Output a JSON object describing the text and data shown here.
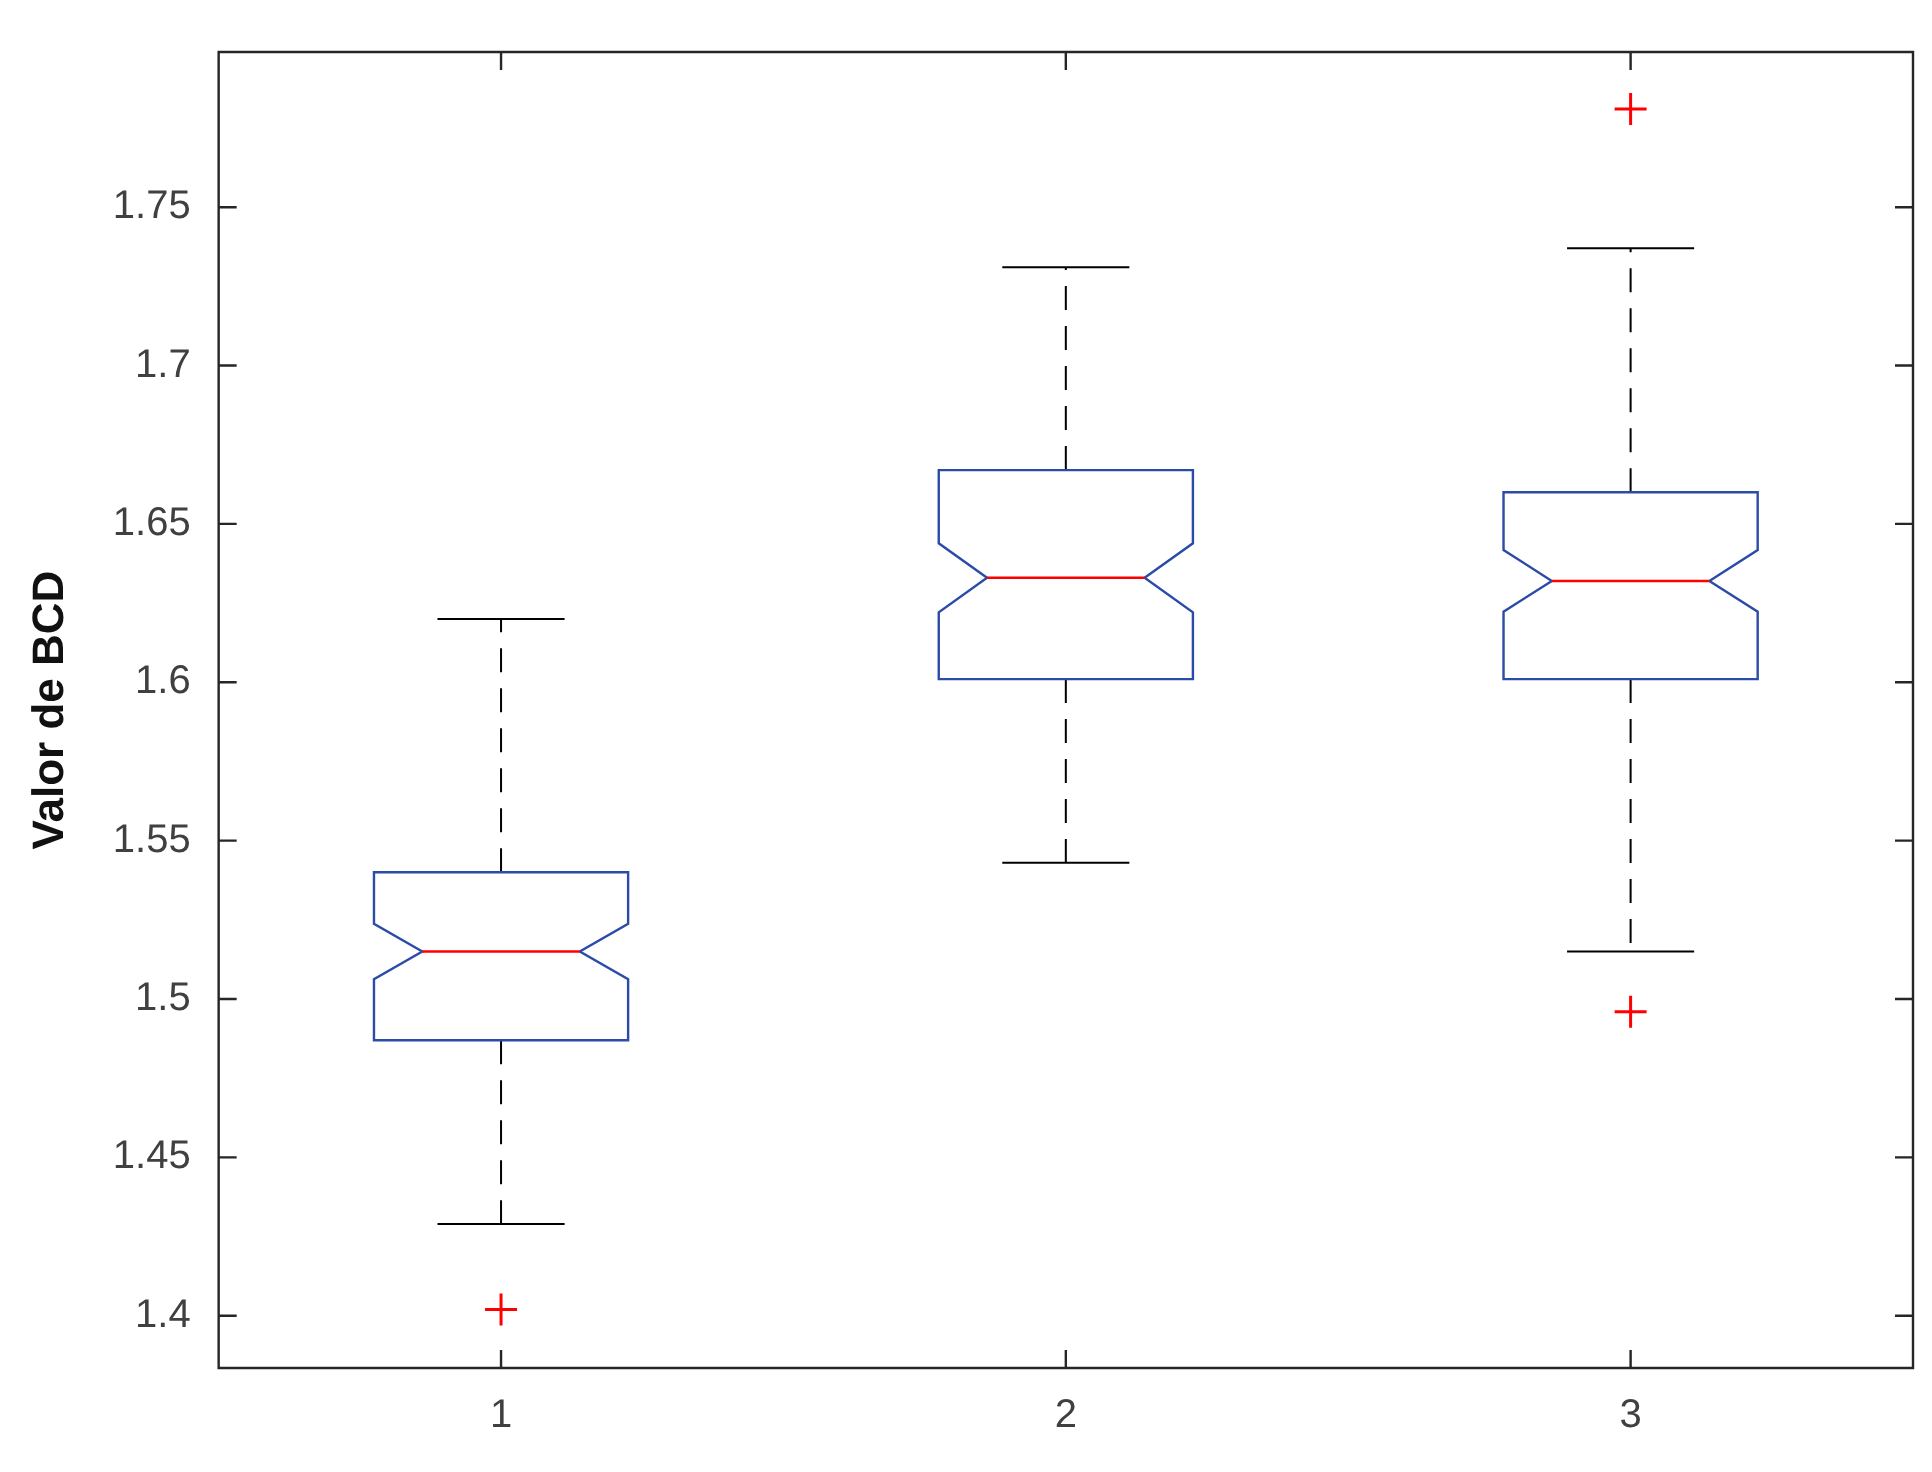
{
  "chart_data": {
    "type": "box",
    "ylabel": "Valor de BCD",
    "categories": [
      "1",
      "2",
      "3"
    ],
    "series": [
      {
        "color": "#2b4ba8",
        "boxes": [
          {
            "low": 1.429,
            "q1": 1.487,
            "median": 1.515,
            "q3": 1.54,
            "high": 1.62,
            "outliers": [
              1.402
            ]
          },
          {
            "low": 1.543,
            "q1": 1.601,
            "median": 1.633,
            "q3": 1.667,
            "high": 1.731
          },
          {
            "low": 1.515,
            "q1": 1.601,
            "median": 1.632,
            "q3": 1.66,
            "high": 1.737,
            "outliers": [
              1.781,
              1.496
            ]
          }
        ]
      }
    ],
    "ylim": [
      1.3835,
      1.799
    ],
    "yticks": [
      1.4,
      1.45,
      1.5,
      1.55,
      1.6,
      1.65,
      1.7,
      1.75
    ],
    "marker": "cross"
  }
}
